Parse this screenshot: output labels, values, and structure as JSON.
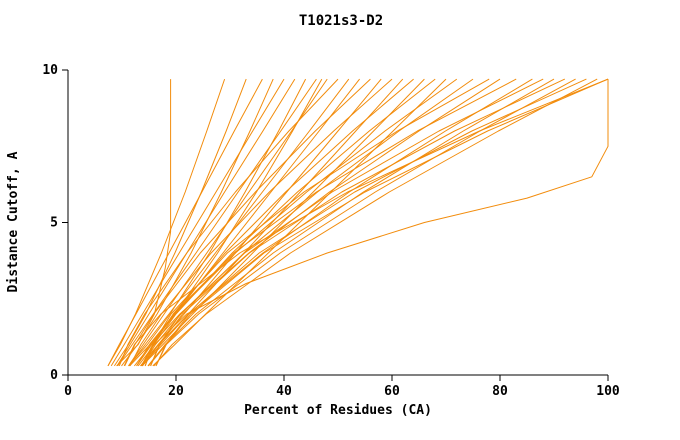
{
  "chart_data": {
    "type": "line",
    "title": "T1021s3-D2",
    "xlabel": "Percent of Residues (CA)",
    "ylabel": "Distance Cutoff, A",
    "xlim": [
      0,
      102
    ],
    "ylim": [
      0,
      10
    ],
    "x_ticks": [
      0,
      20,
      40,
      60,
      80,
      100
    ],
    "y_ticks": [
      0,
      5,
      10
    ],
    "grid": false,
    "legend": "none",
    "line_color": "#f28c0c",
    "axis_color": "#000000",
    "series": [
      {
        "points": [
          [
            7.4,
            0.3
          ],
          [
            9.7,
            1
          ],
          [
            12.5,
            2
          ],
          [
            17.3,
            4
          ],
          [
            21.7,
            6
          ],
          [
            25.7,
            8
          ],
          [
            29,
            9.7
          ]
        ]
      },
      {
        "points": [
          [
            8.6,
            0.3
          ],
          [
            11.2,
            1
          ],
          [
            14.4,
            2
          ],
          [
            19.8,
            4
          ],
          [
            24.7,
            6
          ],
          [
            29.3,
            8
          ],
          [
            33,
            9.7
          ]
        ]
      },
      {
        "points": [
          [
            7.4,
            0.3
          ],
          [
            9.5,
            1
          ],
          [
            12.6,
            2
          ],
          [
            18.7,
            4
          ],
          [
            24.8,
            6
          ],
          [
            30.8,
            8
          ],
          [
            36,
            9.7
          ]
        ]
      },
      {
        "points": [
          [
            9.9,
            0.3
          ],
          [
            12.9,
            1
          ],
          [
            16.5,
            2
          ],
          [
            22.8,
            4
          ],
          [
            28.4,
            6
          ],
          [
            33.7,
            8
          ],
          [
            38,
            9.7
          ]
        ]
      },
      {
        "points": [
          [
            8,
            0.3
          ],
          [
            10.4,
            1
          ],
          [
            13.8,
            2
          ],
          [
            20.6,
            4
          ],
          [
            27.4,
            6
          ],
          [
            34.2,
            8
          ],
          [
            40,
            9.7
          ]
        ]
      },
      {
        "points": [
          [
            9.1,
            0.3
          ],
          [
            11.5,
            1
          ],
          [
            15,
            2
          ],
          [
            22,
            4
          ],
          [
            29,
            6
          ],
          [
            36.1,
            8
          ],
          [
            42,
            9.7
          ]
        ]
      },
      {
        "points": [
          [
            11.2,
            0.3
          ],
          [
            14.7,
            1
          ],
          [
            18.9,
            2
          ],
          [
            26.2,
            4
          ],
          [
            32.8,
            6
          ],
          [
            39,
            8
          ],
          [
            44,
            9.7
          ]
        ]
      },
      {
        "points": [
          [
            9.2,
            0.3
          ],
          [
            11.9,
            1
          ],
          [
            15.8,
            2
          ],
          [
            23.7,
            4
          ],
          [
            31.5,
            6
          ],
          [
            39.4,
            8
          ],
          [
            46,
            9.7
          ]
        ]
      },
      {
        "points": [
          [
            11.4,
            0.3
          ],
          [
            15.2,
            1
          ],
          [
            19.8,
            2
          ],
          [
            27.7,
            4
          ],
          [
            34.9,
            6
          ],
          [
            41.6,
            8
          ],
          [
            47,
            9.7
          ]
        ]
      },
      {
        "points": [
          [
            11.2,
            0.3
          ],
          [
            13.9,
            1
          ],
          [
            17.8,
            2
          ],
          [
            25.7,
            4
          ],
          [
            33.5,
            6
          ],
          [
            41.4,
            8
          ],
          [
            48,
            9.7
          ]
        ]
      },
      {
        "points": [
          [
            9.5,
            0.3
          ],
          [
            11.1,
            1
          ],
          [
            14.2,
            2
          ],
          [
            22,
            4
          ],
          [
            31,
            6
          ],
          [
            40.9,
            8
          ],
          [
            50,
            9.7
          ]
        ]
      },
      {
        "points": [
          [
            11.3,
            0.3
          ],
          [
            14.3,
            1
          ],
          [
            18.7,
            2
          ],
          [
            27.3,
            4
          ],
          [
            36,
            6
          ],
          [
            44.7,
            8
          ],
          [
            52,
            9.7
          ]
        ]
      },
      {
        "points": [
          [
            12.3,
            0.3
          ],
          [
            15.4,
            1
          ],
          [
            19.9,
            2
          ],
          [
            28.7,
            4
          ],
          [
            37.6,
            6
          ],
          [
            46.5,
            8
          ],
          [
            54,
            9.7
          ]
        ]
      },
      {
        "points": [
          [
            10.5,
            0.3
          ],
          [
            12.4,
            1
          ],
          [
            15.9,
            2
          ],
          [
            24.5,
            4
          ],
          [
            34.7,
            6
          ],
          [
            45.8,
            8
          ],
          [
            56,
            9.7
          ]
        ]
      },
      {
        "points": [
          [
            13.4,
            0.3
          ],
          [
            16.7,
            1
          ],
          [
            21.5,
            2
          ],
          [
            31,
            4
          ],
          [
            40.5,
            6
          ],
          [
            50,
            8
          ],
          [
            58,
            9.7
          ]
        ]
      },
      {
        "points": [
          [
            11.5,
            0.3
          ],
          [
            13.5,
            1
          ],
          [
            17.3,
            2
          ],
          [
            26.5,
            4
          ],
          [
            37.3,
            6
          ],
          [
            49.2,
            8
          ],
          [
            60,
            9.7
          ]
        ]
      },
      {
        "points": [
          [
            13.6,
            0.3
          ],
          [
            17.2,
            1
          ],
          [
            22.3,
            2
          ],
          [
            32.6,
            4
          ],
          [
            43,
            6
          ],
          [
            53.3,
            8
          ],
          [
            62,
            9.7
          ]
        ]
      },
      {
        "points": [
          [
            13.6,
            0.3
          ],
          [
            15.7,
            1
          ],
          [
            19.5,
            2
          ],
          [
            29.1,
            4
          ],
          [
            40.3,
            6
          ],
          [
            52.7,
            8
          ],
          [
            64,
            9.7
          ]
        ]
      },
      {
        "points": [
          [
            13.7,
            0.3
          ],
          [
            17.6,
            1
          ],
          [
            23.1,
            2
          ],
          [
            34.2,
            4
          ],
          [
            45.4,
            6
          ],
          [
            56.6,
            8
          ],
          [
            66,
            9.7
          ]
        ]
      },
      {
        "points": [
          [
            13.6,
            0.3
          ],
          [
            15.9,
            1
          ],
          [
            20,
            2
          ],
          [
            30.4,
            4
          ],
          [
            42.5,
            6
          ],
          [
            55.8,
            8
          ],
          [
            68,
            9.7
          ]
        ]
      },
      {
        "points": [
          [
            15.7,
            0.3
          ],
          [
            19.8,
            1
          ],
          [
            25.5,
            2
          ],
          [
            37.1,
            4
          ],
          [
            48.7,
            6
          ],
          [
            60.2,
            8
          ],
          [
            70,
            9.7
          ]
        ]
      },
      {
        "points": [
          [
            12.7,
            0.3
          ],
          [
            15.1,
            1
          ],
          [
            19.7,
            2
          ],
          [
            31,
            4
          ],
          [
            44.2,
            6
          ],
          [
            58.7,
            8
          ],
          [
            72,
            9.7
          ]
        ]
      },
      {
        "points": [
          [
            13.7,
            0.3
          ],
          [
            16.2,
            1
          ],
          [
            20.9,
            2
          ],
          [
            32.6,
            4
          ],
          [
            46.2,
            6
          ],
          [
            61.3,
            8
          ],
          [
            75,
            9.7
          ]
        ]
      },
      {
        "points": [
          [
            14.3,
            0.3
          ],
          [
            15.7,
            1
          ],
          [
            19.1,
            2
          ],
          [
            29.5,
            4
          ],
          [
            43.7,
            6
          ],
          [
            61,
            8
          ],
          [
            78,
            9.7
          ]
        ]
      },
      {
        "points": [
          [
            12.7,
            0.3
          ],
          [
            15.5,
            1
          ],
          [
            20.7,
            2
          ],
          [
            33.5,
            4
          ],
          [
            48.4,
            6
          ],
          [
            65,
            8
          ],
          [
            80,
            9.7
          ]
        ]
      },
      {
        "points": [
          [
            14.3,
            0.3
          ],
          [
            15.8,
            1
          ],
          [
            19.5,
            2
          ],
          [
            30.7,
            4
          ],
          [
            46,
            6
          ],
          [
            64.7,
            8
          ],
          [
            83,
            9.7
          ]
        ]
      },
      {
        "points": [
          [
            13.8,
            0.3
          ],
          [
            16.8,
            1
          ],
          [
            22.3,
            2
          ],
          [
            36.1,
            4
          ],
          [
            52.1,
            6
          ],
          [
            69.9,
            8
          ],
          [
            86,
            9.7
          ]
        ]
      },
      {
        "points": [
          [
            15.3,
            0.3
          ],
          [
            16.9,
            1
          ],
          [
            20.8,
            2
          ],
          [
            32.7,
            4
          ],
          [
            48.9,
            6
          ],
          [
            68.7,
            8
          ],
          [
            88,
            9.7
          ]
        ]
      },
      {
        "points": [
          [
            14.8,
            0.3
          ],
          [
            18,
            1
          ],
          [
            23.7,
            2
          ],
          [
            38,
            4
          ],
          [
            54.7,
            6
          ],
          [
            73.2,
            8
          ],
          [
            90,
            9.7
          ]
        ]
      },
      {
        "points": [
          [
            15.3,
            0.3
          ],
          [
            17,
            1
          ],
          [
            21.2,
            2
          ],
          [
            33.6,
            4
          ],
          [
            50.7,
            6
          ],
          [
            71.6,
            8
          ],
          [
            92,
            9.7
          ]
        ]
      },
      {
        "points": [
          [
            14.9,
            0.3
          ],
          [
            18.2,
            1
          ],
          [
            24.2,
            2
          ],
          [
            39.3,
            4
          ],
          [
            56.9,
            6
          ],
          [
            76.3,
            8
          ],
          [
            94,
            9.7
          ]
        ]
      },
      {
        "points": [
          [
            16.3,
            0.3
          ],
          [
            18.1,
            1
          ],
          [
            22.4,
            2
          ],
          [
            35.4,
            4
          ],
          [
            53.1,
            6
          ],
          [
            74.8,
            8
          ],
          [
            96,
            9.7
          ]
        ]
      },
      {
        "points": [
          [
            15.9,
            0.3
          ],
          [
            19.3,
            1
          ],
          [
            25.6,
            2
          ],
          [
            41.2,
            4
          ],
          [
            59.5,
            6
          ],
          [
            79.7,
            8
          ],
          [
            98,
            9.7
          ]
        ]
      },
      {
        "points": [
          [
            16.3,
            0.3
          ],
          [
            18.2,
            1
          ],
          [
            22.7,
            2
          ],
          [
            36.3,
            4
          ],
          [
            55,
            6
          ],
          [
            77.7,
            8
          ],
          [
            100,
            9.7
          ]
        ]
      },
      {
        "points": [
          [
            10.4,
            0.3
          ],
          [
            12.3,
            1
          ],
          [
            17.2,
            2
          ],
          [
            31.8,
            4
          ],
          [
            51.8,
            6
          ],
          [
            76.2,
            8
          ],
          [
            100,
            9.7
          ]
        ]
      },
      {
        "points": [
          [
            9,
            0.3
          ],
          [
            13,
            1
          ],
          [
            16,
            2
          ],
          [
            18,
            3.5
          ],
          [
            19,
            4.7
          ],
          [
            19,
            9.7
          ]
        ]
      },
      {
        "points": [
          [
            13,
            0.3
          ],
          [
            16,
            1
          ],
          [
            22,
            2
          ],
          [
            33,
            3
          ],
          [
            48,
            4
          ],
          [
            66,
            5
          ],
          [
            85,
            5.8
          ],
          [
            97,
            6.5
          ],
          [
            100,
            7.5
          ],
          [
            100,
            9.7
          ]
        ]
      }
    ]
  }
}
